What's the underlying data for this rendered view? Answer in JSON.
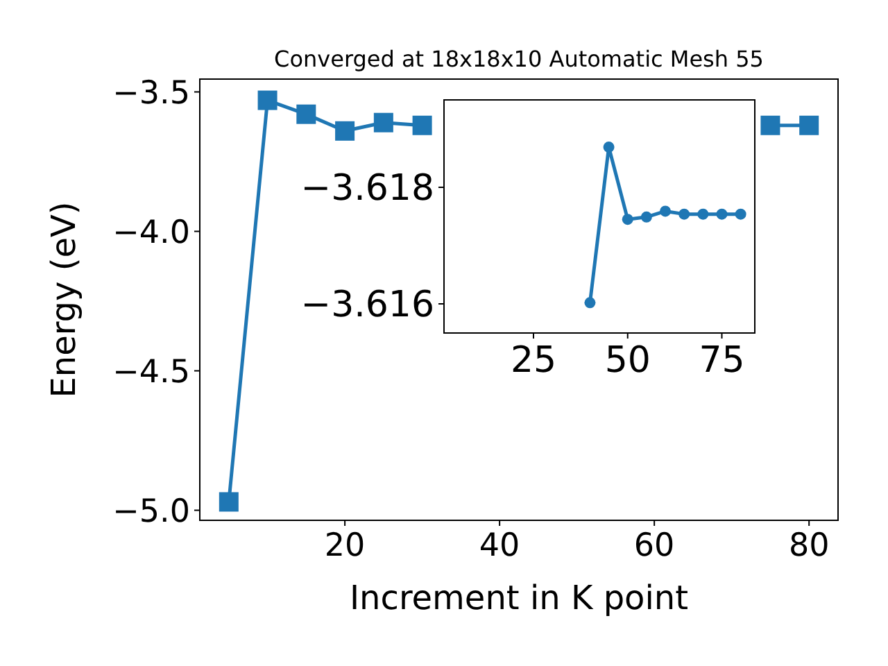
{
  "chart_data": [
    {
      "type": "line",
      "title": "Converged at 18x18x10 Automatic Mesh 55",
      "xlabel": "Increment in K point",
      "ylabel": "Energy (eV)",
      "x": [
        5,
        10,
        15,
        20,
        25,
        30,
        35,
        40,
        45,
        50,
        55,
        60,
        65,
        70,
        75,
        80
      ],
      "series": [
        {
          "color": "#1f77b4",
          "values": [
            -4.97,
            -3.53,
            -3.58,
            -3.64,
            -3.61,
            -3.62,
            null,
            null,
            null,
            null,
            null,
            null,
            null,
            null,
            -3.62,
            -3.62
          ]
        }
      ],
      "xlim": [
        1.25,
        83.75
      ],
      "xticks": [
        20,
        40,
        60,
        80
      ],
      "ylim": [
        -5.036,
        -3.454
      ],
      "yticks": [
        {
          "value": -5.0,
          "label": "−5.0"
        },
        {
          "value": -4.5,
          "label": "−4.5"
        },
        {
          "value": -4.0,
          "label": "−4.0"
        },
        {
          "value": -3.5,
          "label": "−3.5"
        }
      ],
      "marker": "square",
      "grid": false
    },
    {
      "type": "line",
      "x": [
        40,
        45,
        50,
        55,
        60,
        65,
        70,
        75,
        80
      ],
      "series": [
        {
          "color": "#1f77b4",
          "values": [
            -3.61602,
            -3.61869,
            -3.61745,
            -3.61749,
            -3.61759,
            -3.61754,
            -3.61754,
            -3.61754,
            -3.61754
          ]
        }
      ],
      "xlim": [
        1.25,
        83.75
      ],
      "xticks": [
        25,
        50,
        75
      ],
      "ylim": [
        -3.6155,
        -3.6195
      ],
      "yticks": [
        {
          "value": -3.618,
          "label": "−3.618"
        },
        {
          "value": -3.616,
          "label": "−3.616"
        }
      ],
      "marker": "circle",
      "grid": false
    }
  ]
}
